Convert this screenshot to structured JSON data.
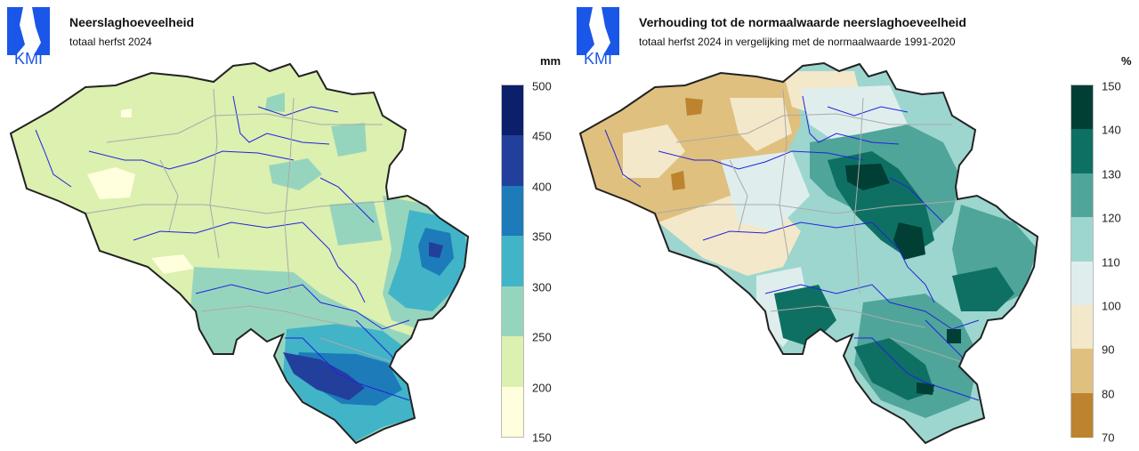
{
  "logo_text": "KMI",
  "left": {
    "title": "Neerslaghoeveelheid",
    "subtitle": "totaal herfst 2024",
    "unit": "mm",
    "legend": {
      "ticks": [
        "500",
        "450",
        "400",
        "350",
        "300",
        "250",
        "200",
        "150"
      ],
      "colors": [
        "#0c1f6b",
        "#233f9c",
        "#1e7bb9",
        "#41b4c8",
        "#96d5bd",
        "#dcf0b0",
        "#ffffde"
      ]
    }
  },
  "right": {
    "title": "Verhouding tot de normaalwaarde neerslaghoeveelheid",
    "subtitle": "totaal herfst 2024 in vergelijking met de normaalwaarde 1991-2020",
    "unit": "%",
    "legend": {
      "ticks": [
        "150",
        "140",
        "130",
        "120",
        "110",
        "100",
        "90",
        "80",
        "70"
      ],
      "colors": [
        "#013e34",
        "#0e7063",
        "#4fa59a",
        "#9dd6cf",
        "#dfeeed",
        "#f3e8c9",
        "#dfc07e",
        "#bd832e"
      ]
    }
  }
}
